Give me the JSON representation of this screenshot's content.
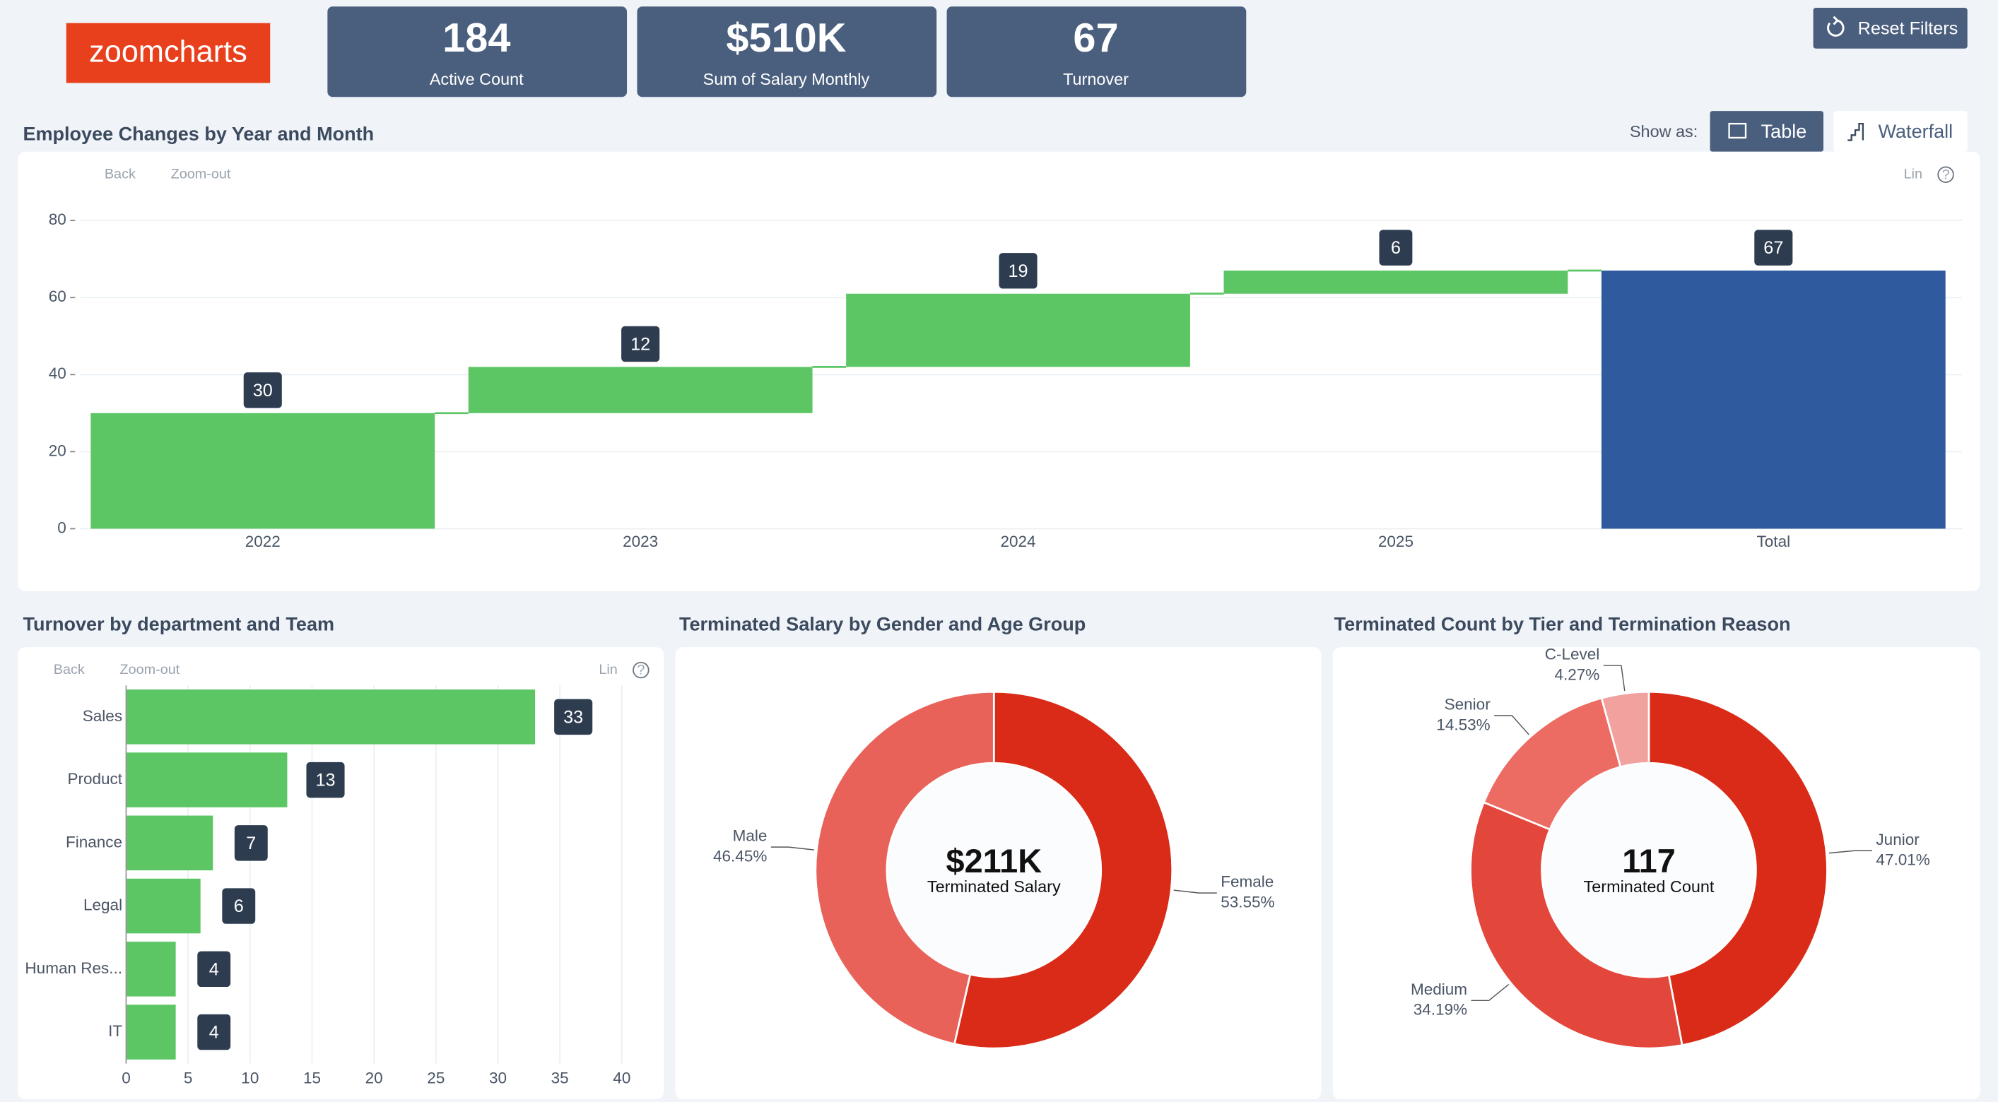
{
  "header": {
    "logo": "zoomcharts",
    "kpis": [
      {
        "value": "184",
        "label": "Active Count"
      },
      {
        "value": "$510K",
        "label": "Sum of Salary Monthly"
      },
      {
        "value": "67",
        "label": "Turnover"
      }
    ],
    "reset": "Reset Filters",
    "show_as": "Show as:",
    "views": [
      "Table",
      "Waterfall"
    ]
  },
  "chart_data": [
    {
      "type": "waterfall",
      "title": "Employee Changes by Year and Month",
      "toolbar": {
        "back": "Back",
        "zoom": "Zoom-out",
        "scale": "Lin",
        "help": "?"
      },
      "categories": [
        "2022",
        "2023",
        "2024",
        "2025",
        "Total"
      ],
      "values": [
        30,
        12,
        19,
        6,
        67
      ],
      "ylim": [
        0,
        80
      ],
      "yticks": [
        0,
        20,
        40,
        60,
        80
      ],
      "grid": true,
      "color": "#5cc665",
      "total_color": "#2f5b9e"
    },
    {
      "type": "hbar",
      "title": "Turnover by department and Team",
      "toolbar": {
        "back": "Back",
        "zoom": "Zoom-out",
        "scale": "Lin",
        "help": "?"
      },
      "categories": [
        "Sales",
        "Product",
        "Finance",
        "Legal",
        "Human Res...",
        "IT"
      ],
      "values": [
        33,
        13,
        7,
        6,
        4,
        4
      ],
      "xlim": [
        0,
        40
      ],
      "xticks": [
        0,
        5,
        10,
        15,
        20,
        25,
        30,
        35,
        40
      ],
      "grid": true,
      "color": "#5cc665"
    },
    {
      "type": "donut",
      "title": "Terminated Salary by Gender and Age Group",
      "center_value": "$211K",
      "center_label": "Terminated Salary",
      "categories": [
        "Female",
        "Male"
      ],
      "values": [
        53.55,
        46.45
      ],
      "value_labels": [
        "53.55%",
        "46.45%"
      ],
      "colors": [
        "#d92b17",
        "#e8625a"
      ]
    },
    {
      "type": "donut",
      "title": "Terminated Count by Tier and Termination Reason",
      "center_value": "117",
      "center_label": "Terminated Count",
      "categories": [
        "Junior",
        "Medium",
        "Senior",
        "C-Level"
      ],
      "values": [
        47.01,
        34.19,
        14.53,
        4.27
      ],
      "value_labels": [
        "47.01%",
        "34.19%",
        "14.53%",
        "4.27%"
      ],
      "colors": [
        "#d92b17",
        "#e3463b",
        "#ec6b63",
        "#f2a29e"
      ]
    }
  ]
}
